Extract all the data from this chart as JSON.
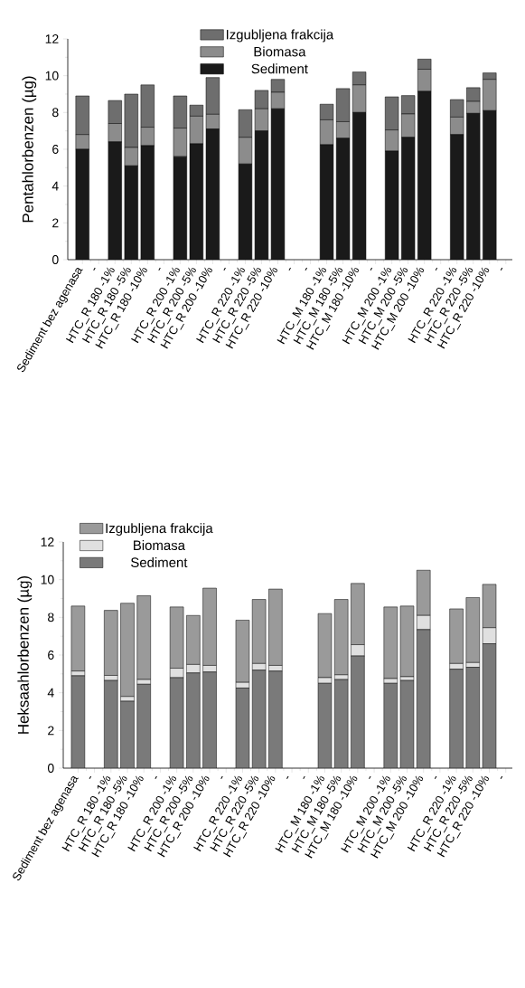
{
  "chart_data": [
    {
      "type": "bar",
      "stacked": true,
      "ylabel": "Pentahlorbenzen (µg)",
      "ylim": [
        0,
        12
      ],
      "yticks": [
        0,
        2,
        4,
        6,
        8,
        10,
        12
      ],
      "legend": "top",
      "categories": [
        "Sediment bez agenasa",
        "-",
        "HTC_R 180 -1%",
        "HTC_R 180 -5%",
        "HTC_R 180 -10%",
        "-",
        "HTC_R 200 -1%",
        "HTC_R 200 -5%",
        "HTC_R 200 -10%",
        "-",
        "HTC_R 220 -1%",
        "HTC_R 220 -5%",
        "HTC_R 220 -10%",
        "-",
        "-",
        "HTC_M 180 -1%",
        "HTC_M 180 -5%",
        "HTC_M 180 -10%",
        "-",
        "HTC_M 200 -1%",
        "HTC_M 200 -5%",
        "HTC_M 200 -10%",
        "-",
        "HTC_R 220 -1%",
        "HTC_R 220 -5%",
        "HTC_R 220 -10%",
        "-"
      ],
      "series": [
        {
          "name": "Sediment",
          "color": "#1a1a1a",
          "values": [
            6.0,
            null,
            6.4,
            5.1,
            6.2,
            null,
            5.6,
            6.3,
            7.1,
            null,
            5.2,
            7.0,
            8.2,
            null,
            null,
            6.25,
            6.6,
            8.0,
            null,
            5.9,
            6.65,
            9.15,
            null,
            6.8,
            7.95,
            8.1,
            null
          ]
        },
        {
          "name": "Biomasa",
          "color": "#8c8c8c",
          "values": [
            0.8,
            null,
            1.0,
            1.0,
            1.0,
            null,
            1.55,
            1.5,
            0.8,
            null,
            1.45,
            1.2,
            0.9,
            null,
            null,
            1.35,
            0.9,
            1.5,
            null,
            1.15,
            1.27,
            1.2,
            null,
            0.95,
            0.65,
            1.7,
            null
          ]
        },
        {
          "name": "Izgubljena frakcija",
          "color": "#6e6e6e",
          "values": [
            2.1,
            null,
            1.25,
            2.9,
            2.3,
            null,
            1.75,
            0.6,
            2.0,
            null,
            1.5,
            1.0,
            0.7,
            null,
            null,
            0.85,
            1.8,
            0.7,
            null,
            1.8,
            1.0,
            0.55,
            null,
            0.95,
            0.75,
            0.35,
            null
          ]
        }
      ]
    },
    {
      "type": "bar",
      "stacked": true,
      "ylabel": "Heksaahlorbenzen (µg)",
      "ylim": [
        0,
        12
      ],
      "yticks": [
        0,
        2,
        4,
        6,
        8,
        10,
        12
      ],
      "legend": "top left",
      "categories": [
        "Sediment bez agenasa",
        "-",
        "HTC_R 180 -1%",
        "HTC_R 180 -5%",
        "HTC_R 180 -10%",
        "-",
        "HTC_R 200 -1%",
        "HTC_R 200 -5%",
        "HTC_R 200 -10%",
        "-",
        "HTC_R 220 -1%",
        "HTC_R 220 -5%",
        "HTC_R 220 -10%",
        "-",
        "-",
        "HTC_M 180 -1%",
        "HTC_M 180 -5%",
        "HTC_M 180 -10%",
        "-",
        "HTC_M 200 -1%",
        "HTC_M 200 -5%",
        "HTC_M 200 -10%",
        "-",
        "HTC_R 220 -1%",
        "HTC_R 220 -5%",
        "HTC_R 220 -10%",
        "-"
      ],
      "series": [
        {
          "name": "Sediment",
          "color": "#7a7a7a",
          "values": [
            4.9,
            null,
            4.65,
            3.55,
            4.45,
            null,
            4.8,
            5.05,
            5.1,
            null,
            4.25,
            5.2,
            5.15,
            null,
            null,
            4.5,
            4.7,
            5.95,
            null,
            4.5,
            4.65,
            7.35,
            null,
            5.25,
            5.35,
            6.6,
            null
          ]
        },
        {
          "name": "Biomasa",
          "color": "#e0e0e0",
          "values": [
            0.25,
            null,
            0.27,
            0.25,
            0.25,
            null,
            0.5,
            0.45,
            0.35,
            null,
            0.3,
            0.35,
            0.3,
            null,
            null,
            0.3,
            0.25,
            0.6,
            null,
            0.25,
            0.2,
            0.75,
            null,
            0.3,
            0.25,
            0.85,
            null
          ]
        },
        {
          "name": "Izgubljena frakcija",
          "color": "#9a9a9a",
          "values": [
            3.45,
            null,
            3.45,
            4.95,
            4.45,
            null,
            3.25,
            2.6,
            4.1,
            null,
            3.3,
            3.4,
            4.05,
            null,
            null,
            3.4,
            4.0,
            3.25,
            null,
            3.8,
            3.75,
            2.4,
            null,
            2.9,
            3.45,
            2.3,
            null
          ]
        }
      ]
    }
  ]
}
